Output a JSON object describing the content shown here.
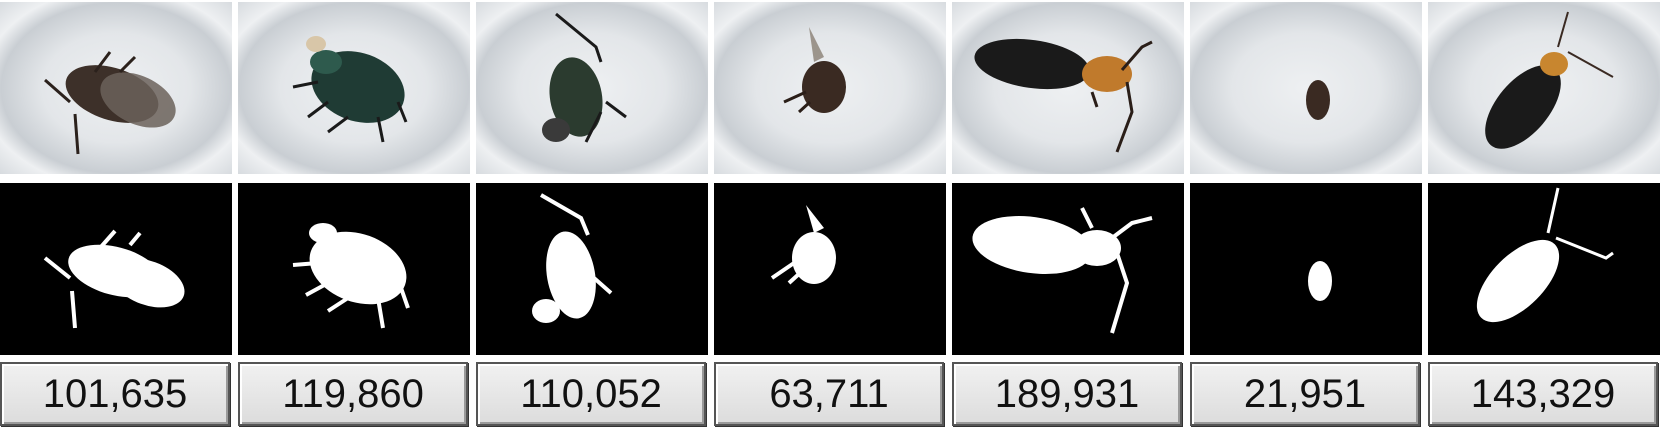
{
  "panels": [
    {
      "pixel_count": "101,635"
    },
    {
      "pixel_count": "119,860"
    },
    {
      "pixel_count": "110,052"
    },
    {
      "pixel_count": "63,711"
    },
    {
      "pixel_count": "189,931"
    },
    {
      "pixel_count": "21,951"
    },
    {
      "pixel_count": "143,329"
    }
  ]
}
